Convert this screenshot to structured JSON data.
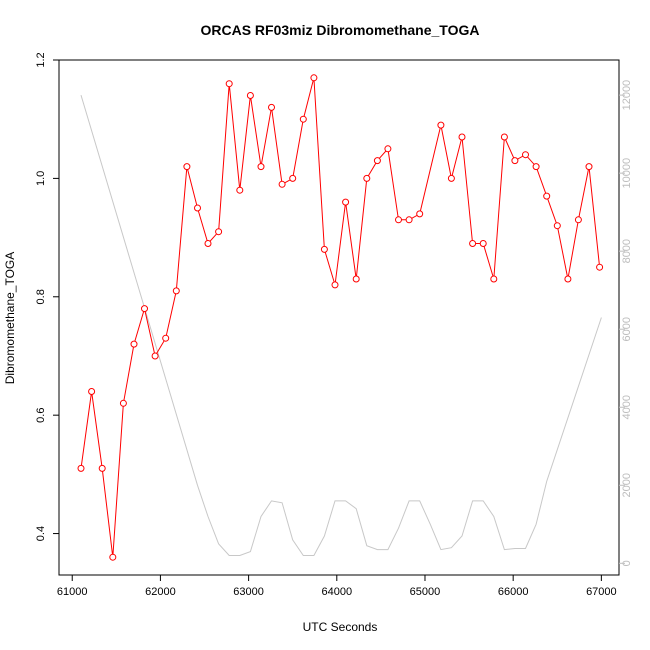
{
  "chart_data": {
    "type": "line",
    "title": "ORCAS RF03miz Dibromomethane_TOGA",
    "xlabel": "UTC Seconds",
    "ylabel": "Dibromomethane_TOGA",
    "xlim": [
      60850,
      67200
    ],
    "ylim": [
      0.33,
      1.2
    ],
    "y2lim": [
      -300,
      12900
    ],
    "xticks": [
      61000,
      62000,
      63000,
      64000,
      65000,
      66000,
      67000
    ],
    "xtick_labels": [
      "61000",
      "62000",
      "63000",
      "64000",
      "65000",
      "66000",
      "67000"
    ],
    "yticks": [
      0.4,
      0.6,
      0.8,
      1.0,
      1.2
    ],
    "ytick_labels": [
      "0.4",
      "0.6",
      "0.8",
      "1.0",
      "1.2"
    ],
    "y2ticks": [
      0,
      2000,
      4000,
      6000,
      8000,
      10000,
      12000
    ],
    "y2tick_labels": [
      "0",
      "2000",
      "4000",
      "6000",
      "8000",
      "10000",
      "12000"
    ],
    "grid": false,
    "series": [
      {
        "color": "#ff0000",
        "axis": "left",
        "markers": true,
        "x": [
          61100,
          61220,
          61340,
          61460,
          61580,
          61700,
          61820,
          61940,
          62060,
          62180,
          62300,
          62420,
          62540,
          62660,
          62780,
          62900,
          63020,
          63140,
          63260,
          63380,
          63500,
          63620,
          63740,
          63860,
          63980,
          64100,
          64220,
          64340,
          64460,
          64580,
          64700,
          64820,
          64940,
          65180,
          65300,
          65420,
          65540,
          65660,
          65780,
          65900,
          66020,
          66140,
          66260,
          66380,
          66500,
          66620,
          66740,
          66860,
          66980
        ],
        "y": [
          0.51,
          0.64,
          0.51,
          0.36,
          0.62,
          0.72,
          0.78,
          0.7,
          0.73,
          0.81,
          1.02,
          0.95,
          0.89,
          0.91,
          1.16,
          0.98,
          1.14,
          1.02,
          1.12,
          0.99,
          1.0,
          1.1,
          1.17,
          0.88,
          0.82,
          0.96,
          0.83,
          1.0,
          1.03,
          1.05,
          0.93,
          0.93,
          0.94,
          1.09,
          1.0,
          1.07,
          0.89,
          0.89,
          0.83,
          1.07,
          1.03,
          1.04,
          1.02,
          0.97,
          0.92,
          0.83,
          0.93,
          1.02,
          0.85
        ]
      },
      {
        "color": "#c8c8c8",
        "axis": "right",
        "markers": false,
        "x": [
          61100,
          62420,
          62540,
          62660,
          62780,
          62900,
          63020,
          63140,
          63260,
          63380,
          63500,
          63620,
          63740,
          63860,
          63980,
          64100,
          64220,
          64340,
          64460,
          64580,
          64700,
          64820,
          64940,
          65060,
          65180,
          65300,
          65420,
          65540,
          65660,
          65780,
          65900,
          66020,
          66140,
          66260,
          66380,
          67000
        ],
        "y": [
          12000,
          2000,
          1200,
          500,
          200,
          200,
          300,
          1200,
          1600,
          1550,
          600,
          200,
          200,
          700,
          1600,
          1600,
          1400,
          450,
          350,
          350,
          900,
          1600,
          1600,
          1000,
          350,
          400,
          700,
          1600,
          1600,
          1200,
          350,
          380,
          380,
          1000,
          2100,
          6300
        ]
      }
    ]
  }
}
